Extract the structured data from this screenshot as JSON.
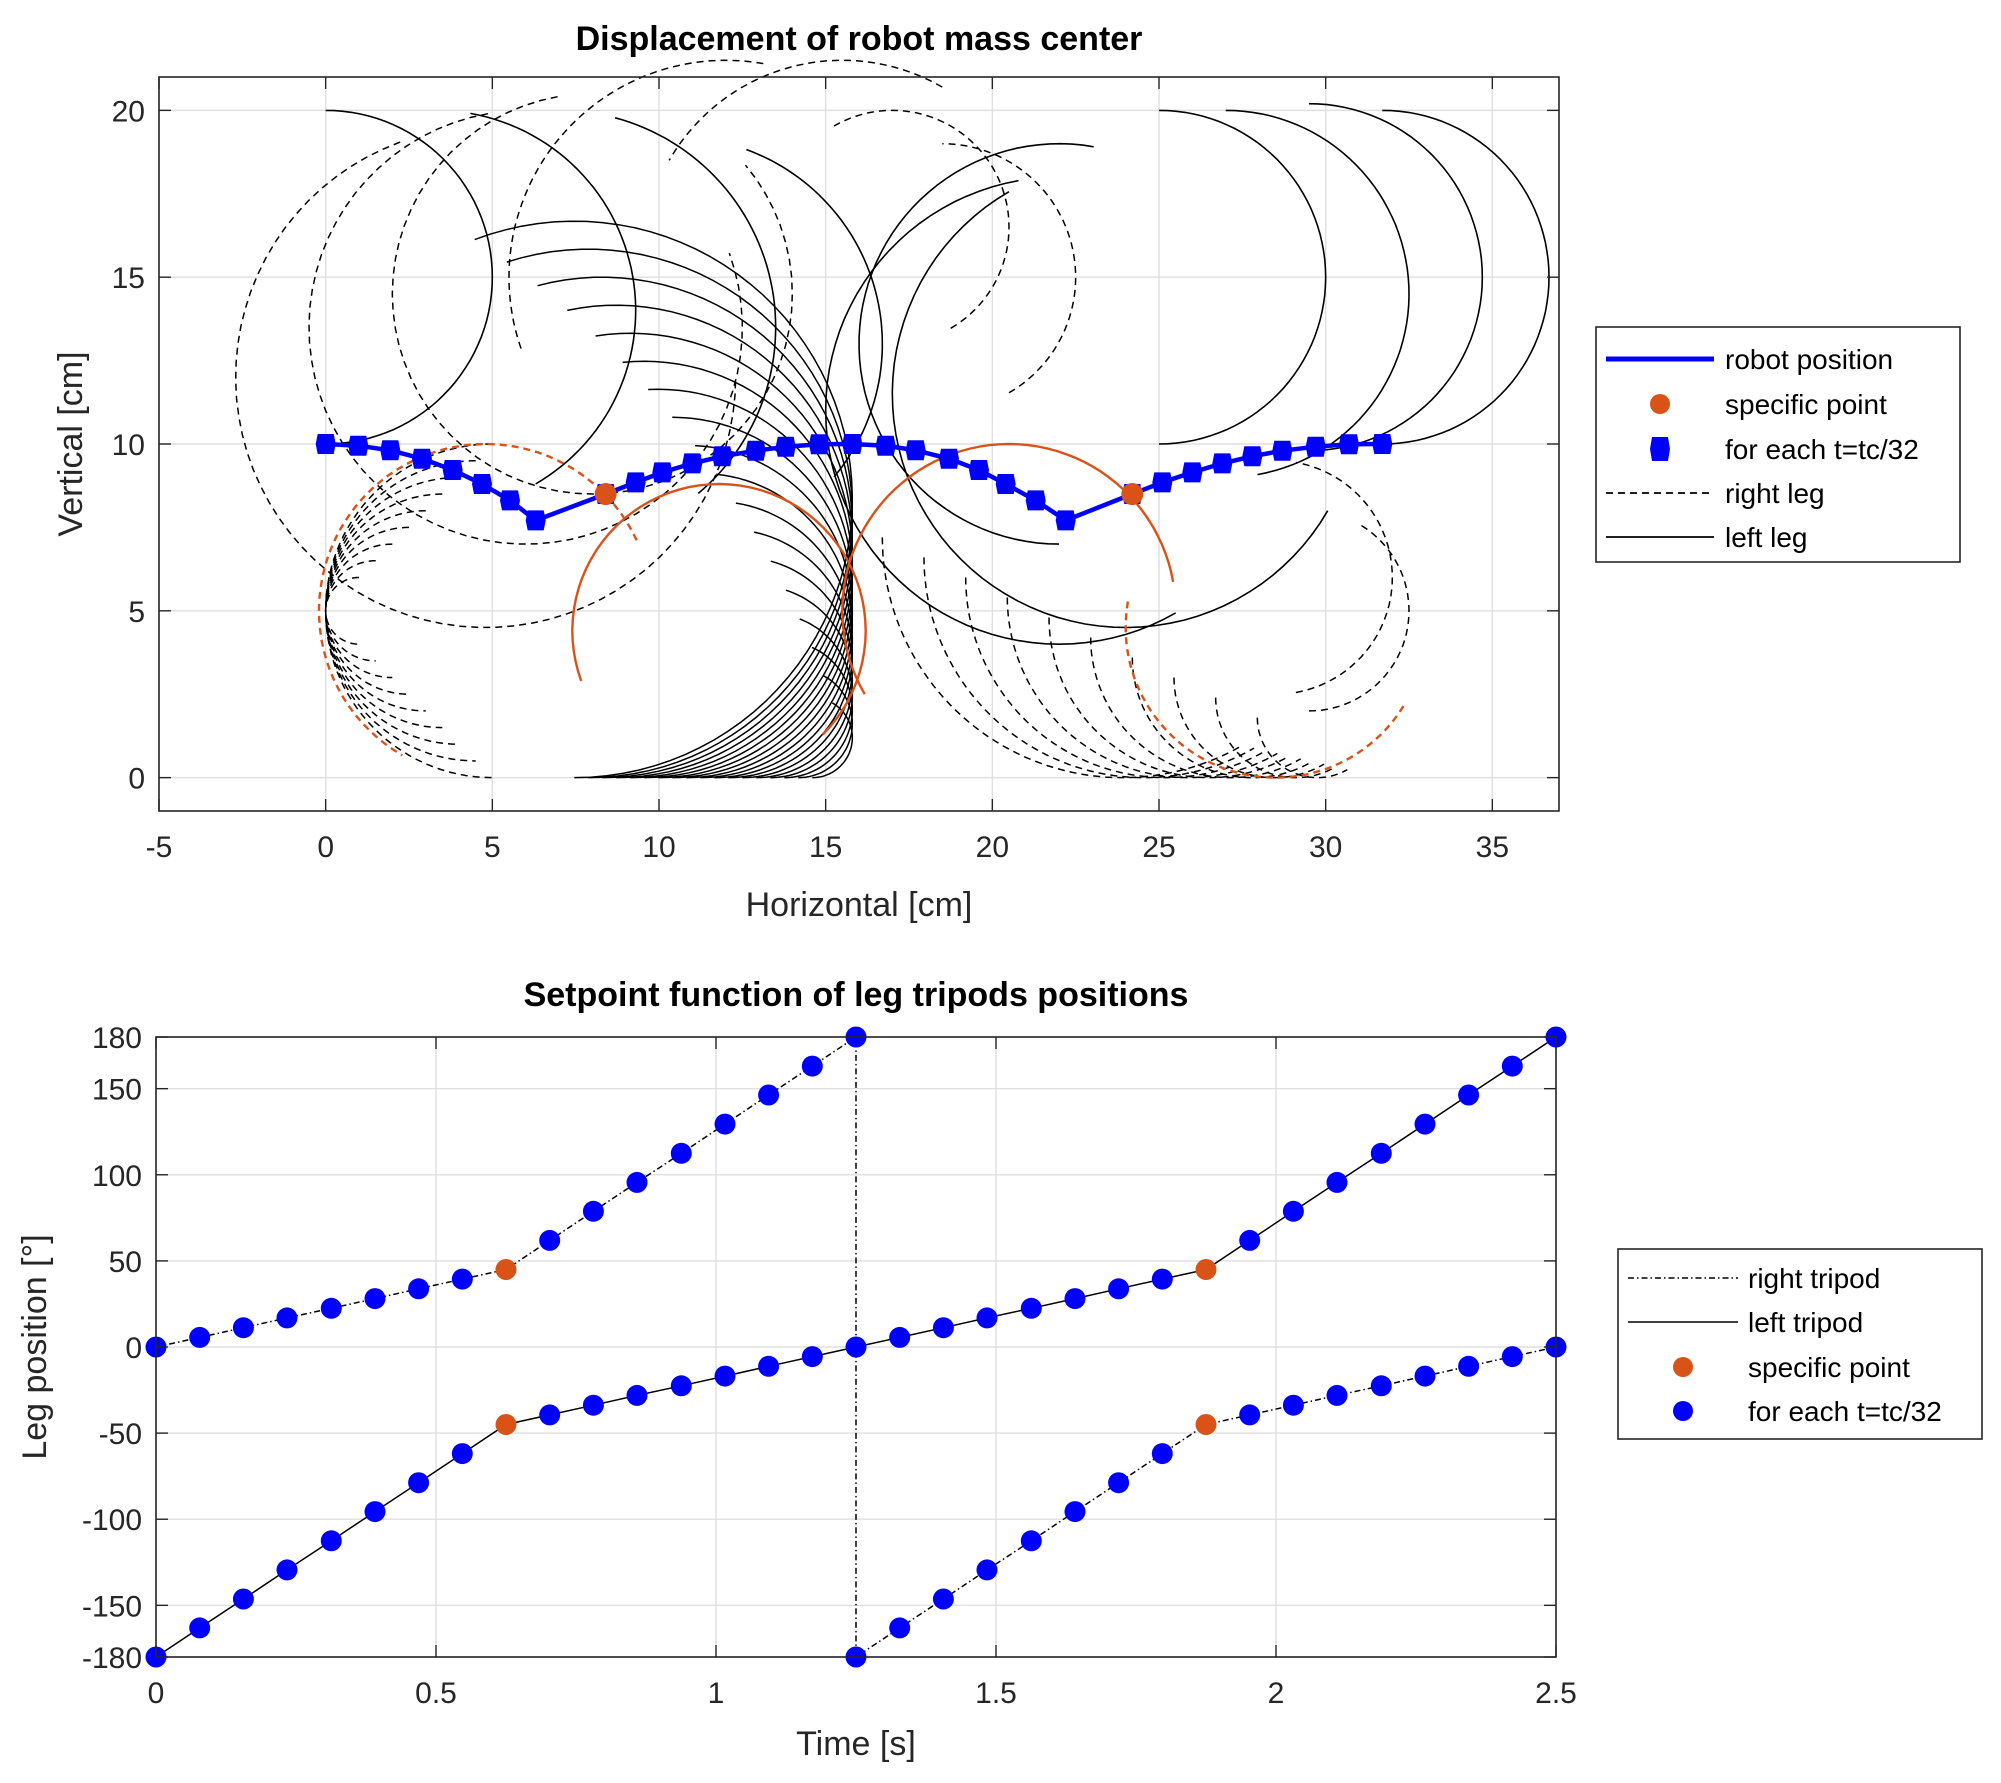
{
  "chart_data": [
    {
      "type": "line",
      "title": "Displacement of robot mass center",
      "xlabel": "Horizontal [cm]",
      "ylabel": "Vertical [cm]",
      "xlim": [
        -5,
        37
      ],
      "ylim": [
        -1,
        21
      ],
      "grid": true,
      "xticks": [
        "-5",
        "0",
        "5",
        "10",
        "15",
        "20",
        "25",
        "30",
        "35"
      ],
      "yticks": [
        "0",
        "5",
        "10",
        "15",
        "20"
      ],
      "legend": {
        "position": "right",
        "entries": [
          "robot position",
          "specific point",
          "for each t=tc/32",
          "right leg",
          "left leg"
        ]
      },
      "series": [
        {
          "name": "robot position",
          "color": "#0000ff",
          "x": [
            0,
            0.98,
            1.94,
            2.89,
            3.81,
            4.69,
            5.53,
            6.3,
            8.4,
            9.3,
            10.1,
            11.0,
            11.9,
            12.9,
            13.8,
            14.8,
            15.8,
            16.8,
            17.7,
            18.7,
            19.6,
            20.4,
            21.3,
            22.2,
            24.2,
            25.1,
            26.0,
            26.9,
            27.8,
            28.7,
            29.7,
            30.7,
            31.7
          ],
          "y": [
            10.0,
            9.95,
            9.81,
            9.56,
            9.22,
            8.8,
            8.31,
            7.71,
            8.5,
            8.85,
            9.15,
            9.42,
            9.63,
            9.8,
            9.92,
            9.99,
            10.0,
            9.95,
            9.81,
            9.56,
            9.22,
            8.8,
            8.31,
            7.71,
            8.5,
            8.85,
            9.15,
            9.42,
            9.63,
            9.8,
            9.92,
            9.99,
            10.0
          ]
        },
        {
          "name": "specific point",
          "color": "#d95319",
          "x": [
            8.4,
            24.2
          ],
          "y": [
            8.5,
            8.5
          ]
        }
      ]
    },
    {
      "type": "line",
      "title": "Setpoint function of leg tripods positions",
      "xlabel": "Time [s]",
      "ylabel": "Leg position [°]",
      "xlim": [
        0,
        2.5
      ],
      "ylim": [
        -180,
        180
      ],
      "grid": true,
      "xticks": [
        "0",
        "0.5",
        "1",
        "1.5",
        "2",
        "2.5"
      ],
      "yticks": [
        "-180",
        "-150",
        "-100",
        "-50",
        "0",
        "50",
        "100",
        "150",
        "180"
      ],
      "legend": {
        "position": "right",
        "entries": [
          "right tripod",
          "left tripod",
          "specific point",
          "for each t=tc/32"
        ]
      },
      "series": [
        {
          "name": "right tripod",
          "color": "#000000",
          "x": [
            0,
            0.078,
            0.156,
            0.234,
            0.313,
            0.391,
            0.469,
            0.547,
            0.625,
            0.703,
            0.781,
            0.859,
            0.938,
            1.016,
            1.094,
            1.172,
            1.25,
            1.25,
            1.328,
            1.406,
            1.484,
            1.563,
            1.641,
            1.719,
            1.797,
            1.875,
            1.953,
            2.031,
            2.109,
            2.188,
            2.266,
            2.344,
            2.422,
            2.5
          ],
          "y": [
            0,
            5.6,
            11.2,
            16.9,
            22.5,
            28.1,
            33.8,
            39.4,
            45,
            61.9,
            78.8,
            95.6,
            112.5,
            129.4,
            146.3,
            163.1,
            180,
            -180,
            -163.1,
            -146.3,
            -129.4,
            -112.5,
            -95.6,
            -78.8,
            -61.9,
            -45,
            -39.4,
            -33.8,
            -28.1,
            -22.5,
            -16.9,
            -11.2,
            -5.6,
            0
          ]
        },
        {
          "name": "left tripod",
          "color": "#000000",
          "x": [
            0,
            0.078,
            0.156,
            0.234,
            0.313,
            0.391,
            0.469,
            0.547,
            0.625,
            0.703,
            0.781,
            0.859,
            0.938,
            1.016,
            1.094,
            1.172,
            1.25,
            1.328,
            1.406,
            1.484,
            1.563,
            1.641,
            1.719,
            1.797,
            1.875,
            1.953,
            2.031,
            2.109,
            2.188,
            2.266,
            2.344,
            2.422,
            2.5
          ],
          "y": [
            -180,
            -163.1,
            -146.3,
            -129.4,
            -112.5,
            -95.6,
            -78.8,
            -61.9,
            -45,
            -39.4,
            -33.8,
            -28.1,
            -22.5,
            -16.9,
            -11.2,
            -5.6,
            0,
            5.6,
            11.2,
            16.9,
            22.5,
            28.1,
            33.8,
            39.4,
            45,
            61.9,
            78.8,
            95.6,
            112.5,
            129.4,
            146.3,
            163.1,
            180
          ]
        },
        {
          "name": "specific point",
          "color": "#d95319",
          "x": [
            0.625,
            0.625,
            1.875,
            1.875
          ],
          "y": [
            45,
            -45,
            45,
            -45
          ]
        }
      ]
    }
  ]
}
